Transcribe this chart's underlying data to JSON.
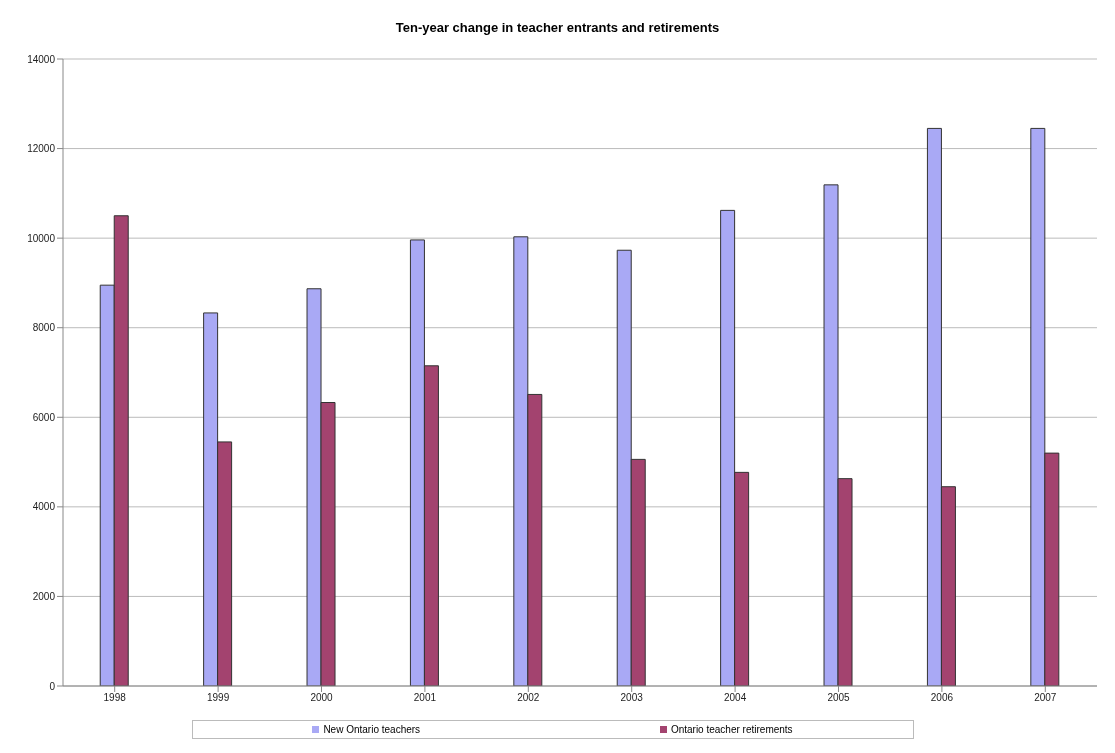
{
  "chart_data": {
    "type": "bar",
    "title": "Ten-year change in teacher entrants and retirements",
    "categories": [
      "1998",
      "1999",
      "2000",
      "2001",
      "2002",
      "2003",
      "2004",
      "2005",
      "2006",
      "2007"
    ],
    "series": [
      {
        "name": "New Ontario teachers",
        "color": "#a9a9f5",
        "values": [
          8950,
          8330,
          8870,
          9960,
          10030,
          9730,
          10620,
          11190,
          12450,
          12450
        ]
      },
      {
        "name": "Ontario teacher retirements",
        "color": "#a3436f",
        "values": [
          10500,
          5450,
          6330,
          7150,
          6510,
          5060,
          4770,
          4630,
          4450,
          5200
        ]
      }
    ],
    "ylim": [
      0,
      14000
    ],
    "yticks": [
      0,
      2000,
      4000,
      6000,
      8000,
      10000,
      12000,
      14000
    ],
    "grid": "y",
    "legend": "bottom"
  }
}
